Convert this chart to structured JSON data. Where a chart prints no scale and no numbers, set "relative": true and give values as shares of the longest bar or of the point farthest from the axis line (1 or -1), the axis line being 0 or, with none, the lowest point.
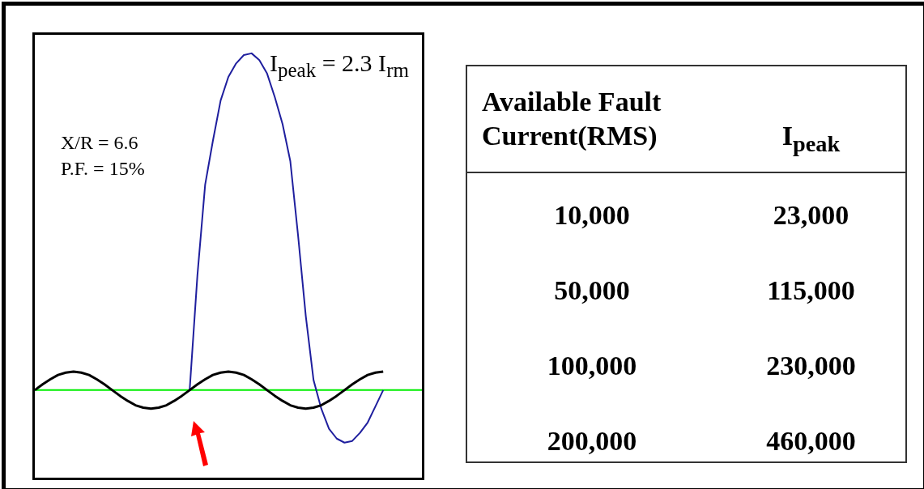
{
  "chart_data": [
    {
      "type": "line",
      "relative": true,
      "legend": false,
      "marker": "none",
      "line_style": "solid",
      "categories": [
        null,
        null,
        null,
        null,
        null,
        null,
        null,
        null,
        null,
        null,
        null,
        null,
        null,
        null,
        null,
        null,
        null,
        null,
        null,
        null,
        null,
        null,
        null,
        null,
        null,
        null,
        null,
        null,
        null,
        null,
        null,
        null,
        null,
        null,
        null,
        null,
        null,
        null,
        null,
        null,
        null,
        null,
        null,
        null,
        null,
        null,
        null,
        null,
        null,
        null,
        null
      ],
      "series": [
        {
          "color": "#000000",
          "values": [
            0,
            0.017,
            0.032,
            0.045,
            0.052,
            0.055,
            0.052,
            0.045,
            0.032,
            0.017,
            0,
            -0.017,
            -0.032,
            -0.045,
            -0.052,
            -0.055,
            -0.052,
            -0.045,
            -0.032,
            -0.017,
            0,
            0.017,
            0.032,
            0.045,
            0.052,
            0.055,
            0.052,
            0.045,
            0.032,
            0.017,
            0,
            -0.017,
            -0.032,
            -0.045,
            -0.052,
            -0.055,
            -0.052,
            -0.045,
            -0.032,
            -0.017,
            0,
            0.017,
            0.032,
            0.045,
            0.052,
            0.055,
            null,
            null,
            null,
            null,
            null
          ]
        },
        {
          "color": "#1f1f9e",
          "values": [
            null,
            null,
            null,
            null,
            null,
            null,
            null,
            null,
            null,
            null,
            null,
            null,
            null,
            null,
            null,
            null,
            null,
            null,
            null,
            null,
            0,
            0.34,
            0.61,
            0.74,
            0.86,
            0.93,
            0.97,
            0.995,
            1,
            0.98,
            0.94,
            0.87,
            0.79,
            0.68,
            0.46,
            0.22,
            0.03,
            -0.055,
            -0.115,
            -0.144,
            -0.156,
            -0.151,
            -0.127,
            -0.096,
            -0.048,
            0,
            null,
            null,
            null,
            null,
            null
          ]
        }
      ],
      "ref_lines": [
        {
          "axis": "y",
          "value": 0,
          "color": "#00ee00"
        }
      ],
      "annotations": [
        "I$_{peak}$ = 2.3 I$_{rm}$",
        "X/R = 6.6",
        "P.F. = 15%"
      ]
    },
    {
      "type": "other",
      "annotations": [
        "Available Fault Current(RMS)",
        "I$_{peak}$",
        "10,000",
        "23,000",
        "50,000",
        "115,000",
        "100,000",
        "230,000",
        "200,000",
        "460,000"
      ]
    }
  ]
}
